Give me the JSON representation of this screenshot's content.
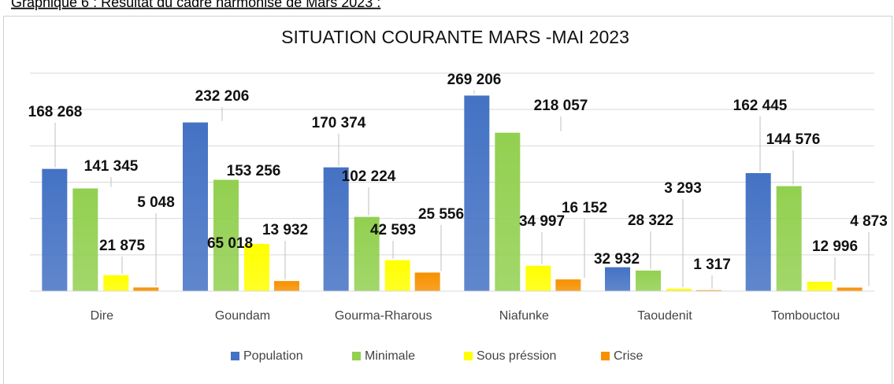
{
  "caption": "Graphique 6 : Résultat du cadre harmonisé de Mars 2023 :",
  "chart_data": {
    "type": "bar",
    "title": "SITUATION COURANTE MARS -MAI 2023",
    "categories": [
      "Dire",
      "Goundam",
      "Gourma-Rharous",
      "Niafunke",
      "Taoudenit",
      "Tombouctou"
    ],
    "series": [
      {
        "name": "Population",
        "color": "#4472c4",
        "values": [
          168268,
          232206,
          170374,
          269206,
          32932,
          162445
        ],
        "value_labels": [
          "168 268",
          "232 206",
          "170 374",
          "269 206",
          "32 932",
          "162 445"
        ]
      },
      {
        "name": "Minimale",
        "color": "#92d050",
        "values": [
          141345,
          153256,
          102224,
          218057,
          28322,
          144576
        ],
        "value_labels": [
          "141 345",
          "153 256",
          "102 224",
          "218 057",
          "28 322",
          "144 576"
        ]
      },
      {
        "name": "Sous préssion",
        "color": "#ffff00",
        "values": [
          21875,
          65018,
          42593,
          34997,
          3293,
          12996
        ],
        "value_labels": [
          "21 875",
          "65 018",
          "42 593",
          "34 997",
          "3 293",
          "12 996"
        ]
      },
      {
        "name": "Crise",
        "color": "#f79100",
        "values": [
          5048,
          13932,
          25556,
          16152,
          1317,
          4873
        ],
        "value_labels": [
          "5 048",
          "13 932",
          "25 556",
          "16 152",
          "1 317",
          "4 873"
        ]
      }
    ],
    "ylim": [
      0,
      300000
    ],
    "yticks": [
      0,
      50000,
      100000,
      150000,
      200000,
      250000,
      300000
    ],
    "grid": true,
    "legend": "bottom"
  }
}
